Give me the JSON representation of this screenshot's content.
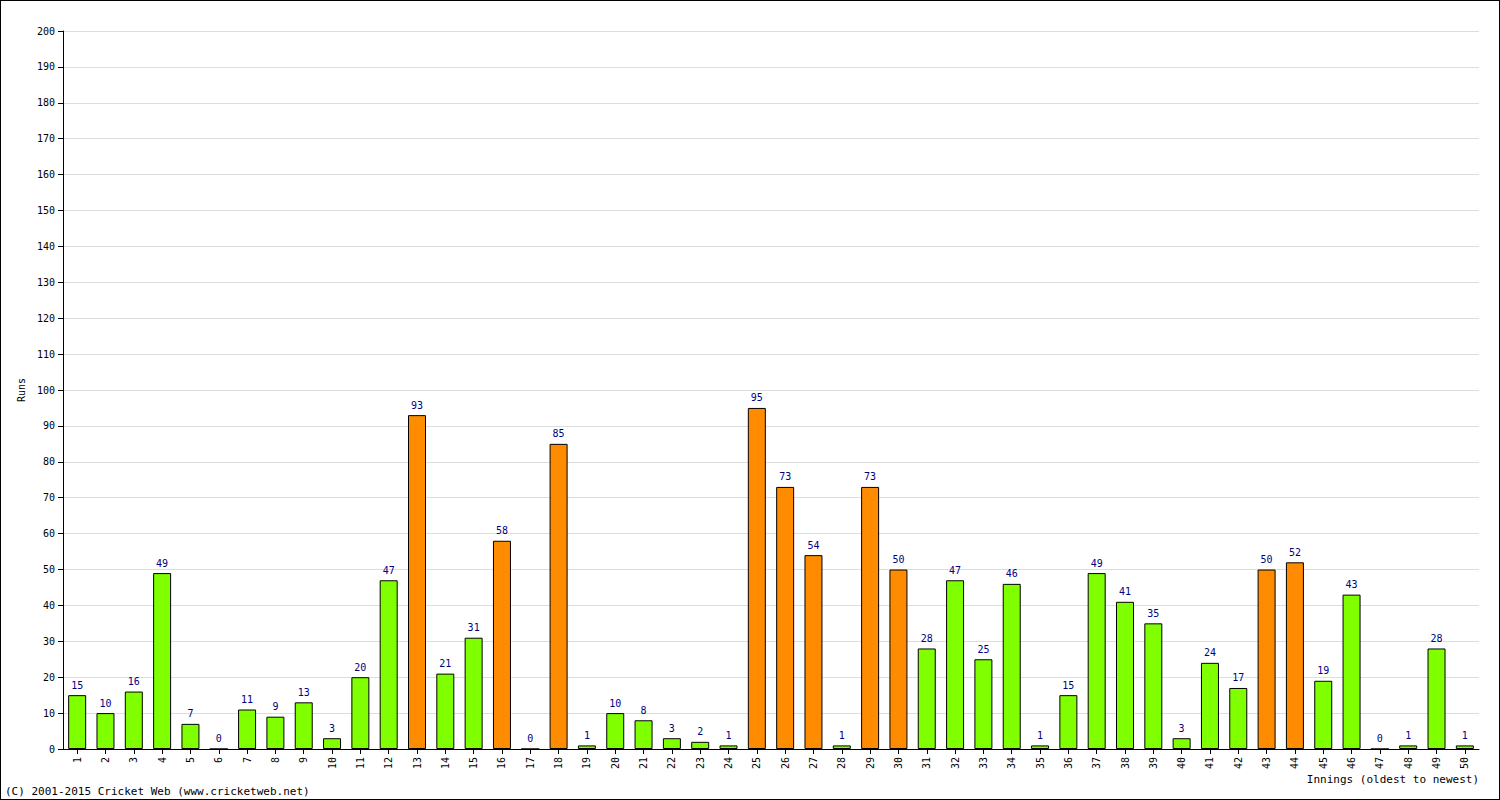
{
  "chart_data": {
    "type": "bar",
    "y_label": "Runs",
    "x_label": "Innings (oldest to newest)",
    "annotations": [
      "(C) 2001-2015 Cricket Web (www.cricketweb.net)"
    ],
    "categories": [
      "1",
      "2",
      "3",
      "4",
      "5",
      "6",
      "7",
      "8",
      "9",
      "10",
      "11",
      "12",
      "13",
      "14",
      "15",
      "16",
      "17",
      "18",
      "19",
      "20",
      "21",
      "22",
      "23",
      "24",
      "25",
      "26",
      "27",
      "28",
      "29",
      "30",
      "31",
      "32",
      "33",
      "34",
      "35",
      "36",
      "37",
      "38",
      "39",
      "40",
      "41",
      "42",
      "43",
      "44",
      "45",
      "46",
      "47",
      "48",
      "49",
      "50"
    ],
    "values": [
      15,
      10,
      16,
      49,
      7,
      0,
      11,
      9,
      13,
      3,
      20,
      47,
      93,
      21,
      31,
      58,
      0,
      85,
      1,
      10,
      8,
      3,
      2,
      1,
      95,
      73,
      54,
      1,
      73,
      50,
      28,
      47,
      25,
      46,
      1,
      15,
      49,
      41,
      35,
      3,
      24,
      17,
      50,
      52,
      19,
      43,
      0,
      1,
      28,
      1
    ],
    "colors": [
      "#80ff00",
      "#80ff00",
      "#80ff00",
      "#80ff00",
      "#80ff00",
      "#80ff00",
      "#80ff00",
      "#80ff00",
      "#80ff00",
      "#80ff00",
      "#80ff00",
      "#80ff00",
      "#ff8c00",
      "#80ff00",
      "#80ff00",
      "#ff8c00",
      "#80ff00",
      "#ff8c00",
      "#80ff00",
      "#80ff00",
      "#80ff00",
      "#80ff00",
      "#80ff00",
      "#80ff00",
      "#ff8c00",
      "#ff8c00",
      "#ff8c00",
      "#80ff00",
      "#ff8c00",
      "#ff8c00",
      "#80ff00",
      "#80ff00",
      "#80ff00",
      "#80ff00",
      "#80ff00",
      "#80ff00",
      "#80ff00",
      "#80ff00",
      "#80ff00",
      "#80ff00",
      "#80ff00",
      "#80ff00",
      "#ff8c00",
      "#ff8c00",
      "#80ff00",
      "#80ff00",
      "#80ff00",
      "#80ff00",
      "#80ff00",
      "#80ff00"
    ],
    "ylim": [
      0,
      200
    ],
    "yticks": [
      0,
      10,
      20,
      30,
      40,
      50,
      60,
      70,
      80,
      90,
      100,
      110,
      120,
      130,
      140,
      150,
      160,
      170,
      180,
      190,
      200
    ],
    "grid": true,
    "data_labels": true,
    "tick_labels": true
  }
}
